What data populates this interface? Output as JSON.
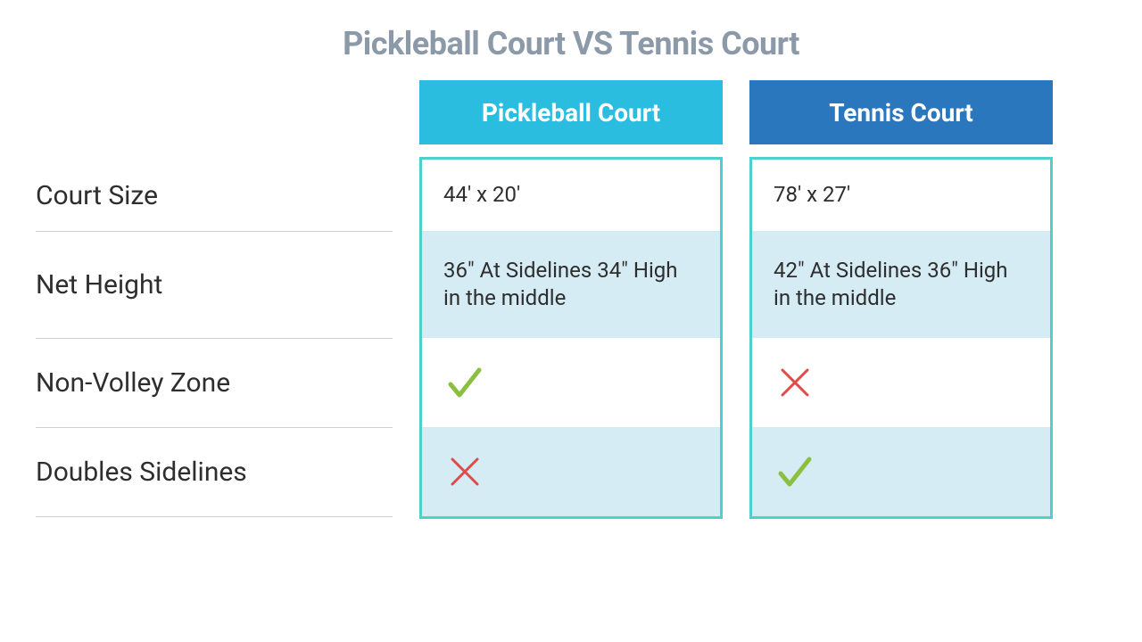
{
  "title": "Pickleball Court VS Tennis Court",
  "title_color": "#8b99a8",
  "labels": [
    "Court Size",
    "Net Height",
    "Non-Volley Zone",
    "Doubles Sidelines"
  ],
  "columns": [
    {
      "name": "Pickleball Court",
      "header_bg": "#2bbde0",
      "border_color": "#4ed0cf",
      "alt_row_bg": "#d6ecf4",
      "cells": [
        {
          "type": "text",
          "value": "44' x 20'"
        },
        {
          "type": "text",
          "value": "36\" At Sidelines 34\" High in the middle"
        },
        {
          "type": "check"
        },
        {
          "type": "cross"
        }
      ]
    },
    {
      "name": "Tennis Court",
      "header_bg": "#2a77bd",
      "border_color": "#4ed0cf",
      "alt_row_bg": "#d6ecf4",
      "cells": [
        {
          "type": "text",
          "value": "78' x 27'"
        },
        {
          "type": "text",
          "value": "42\" At Sidelines 36\" High in the middle"
        },
        {
          "type": "cross"
        },
        {
          "type": "check"
        }
      ]
    }
  ],
  "row_heights": [
    "first",
    "tall",
    "mid",
    "mid"
  ],
  "check_color": "#8bbf3f",
  "cross_color": "#e24a4a"
}
